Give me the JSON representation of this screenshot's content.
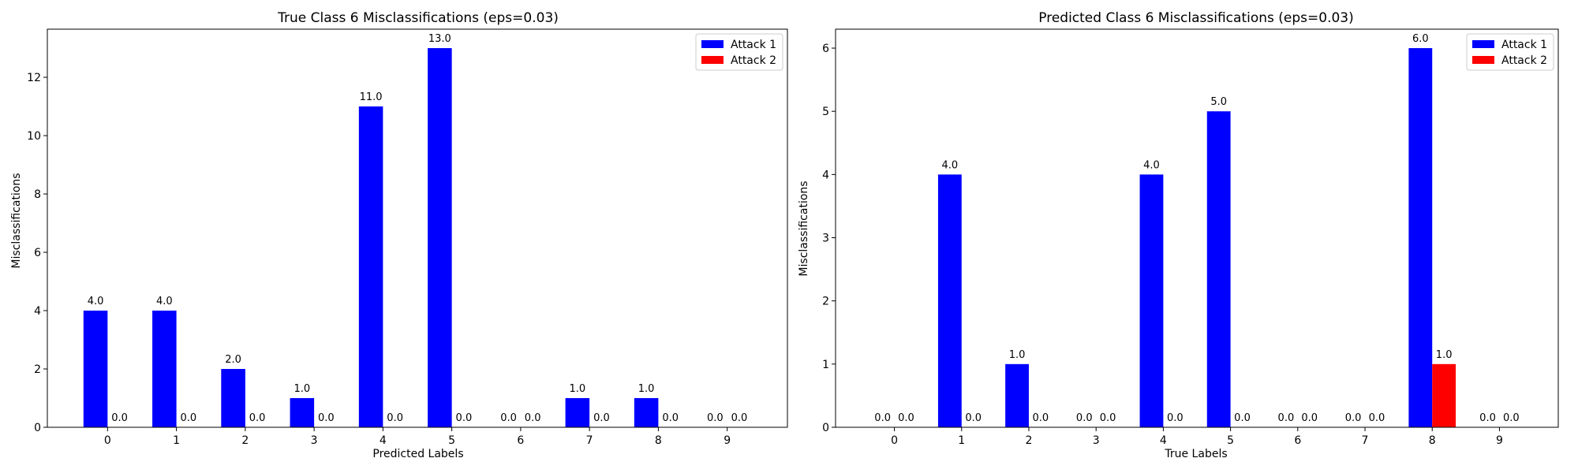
{
  "chart_data": [
    {
      "type": "bar",
      "title": "True Class 6 Misclassifications (eps=0.03)",
      "xlabel": "Predicted Labels",
      "ylabel": "Misclassifications",
      "categories": [
        "0",
        "1",
        "2",
        "3",
        "4",
        "5",
        "6",
        "7",
        "8",
        "9"
      ],
      "series": [
        {
          "name": "Attack 1",
          "color": "#0000ff",
          "values": [
            4,
            4,
            2,
            1,
            11,
            13,
            0,
            1,
            1,
            0
          ]
        },
        {
          "name": "Attack 2",
          "color": "#ff0000",
          "values": [
            0,
            0,
            0,
            0,
            0,
            0,
            0,
            0,
            0,
            0
          ]
        }
      ],
      "ylim": [
        0,
        13.65
      ],
      "yticks": [
        0,
        2,
        4,
        6,
        8,
        10,
        12
      ],
      "grid": false,
      "legend_position": "top-right"
    },
    {
      "type": "bar",
      "title": "Predicted Class 6 Misclassifications (eps=0.03)",
      "xlabel": "True Labels",
      "ylabel": "Misclassifications",
      "categories": [
        "0",
        "1",
        "2",
        "3",
        "4",
        "5",
        "6",
        "7",
        "8",
        "9"
      ],
      "series": [
        {
          "name": "Attack 1",
          "color": "#0000ff",
          "values": [
            0,
            4,
            1,
            0,
            4,
            5,
            0,
            0,
            6,
            0
          ]
        },
        {
          "name": "Attack 2",
          "color": "#ff0000",
          "values": [
            0,
            0,
            0,
            0,
            0,
            0,
            0,
            0,
            1,
            0
          ]
        }
      ],
      "ylim": [
        0,
        6.3
      ],
      "yticks": [
        0,
        1,
        2,
        3,
        4,
        5,
        6
      ],
      "grid": false,
      "legend_position": "top-right"
    }
  ]
}
